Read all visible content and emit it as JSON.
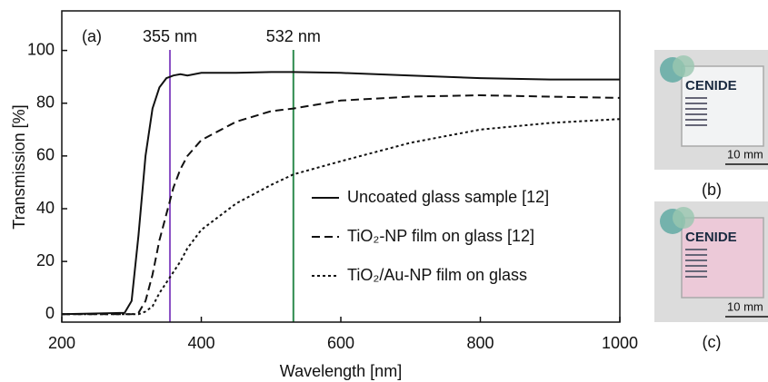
{
  "chart_data": {
    "type": "line",
    "panel_label": "(a)",
    "x_label": "Wavelength [nm]",
    "y_label": "Transmission [%]",
    "xlim": [
      200,
      1000
    ],
    "xticks": [
      200,
      400,
      600,
      800,
      1000
    ],
    "ylim": [
      -3,
      115
    ],
    "yticks": [
      0,
      20,
      40,
      60,
      80,
      100
    ],
    "x": [
      200,
      290,
      300,
      310,
      320,
      330,
      340,
      350,
      355,
      360,
      370,
      380,
      400,
      450,
      500,
      532,
      600,
      700,
      800,
      900,
      1000
    ],
    "series": [
      {
        "name": "Uncoated glass sample [12]",
        "color": "#111111",
        "dash": "solid",
        "values": [
          0,
          0.5,
          5,
          30,
          60,
          78,
          86,
          89.5,
          90,
          90.5,
          91,
          90.5,
          91.5,
          91.5,
          91.8,
          91.8,
          91.5,
          90.5,
          89.5,
          89,
          89
        ]
      },
      {
        "name": "TiO₂-NP film on glass [12]",
        "color": "#111111",
        "dash": "dashed",
        "values": [
          0,
          0,
          0,
          0.5,
          5,
          15,
          28,
          38,
          43,
          48,
          55,
          60,
          66,
          73,
          77,
          78,
          81,
          82.5,
          83,
          82.5,
          82
        ]
      },
      {
        "name": "TiO₂/Au-NP film on glass",
        "color": "#111111",
        "dash": "dotted",
        "values": [
          0,
          0,
          0,
          0,
          1,
          3,
          8,
          12,
          14,
          16,
          20,
          25,
          32,
          42,
          49,
          53,
          58,
          65,
          70,
          72.5,
          74
        ]
      }
    ],
    "vlines": [
      {
        "x": 355,
        "label": "355 nm",
        "color": "#8a4fc4"
      },
      {
        "x": 532,
        "label": "532 nm",
        "color": "#2e8b4e"
      }
    ]
  },
  "photos": [
    {
      "label": "(b)",
      "logo": "CENIDE",
      "scale": "10 mm",
      "tint": "#f2f3f4"
    },
    {
      "label": "(c)",
      "logo": "CENIDE",
      "scale": "10 mm",
      "tint": "#ecc9d8"
    }
  ]
}
